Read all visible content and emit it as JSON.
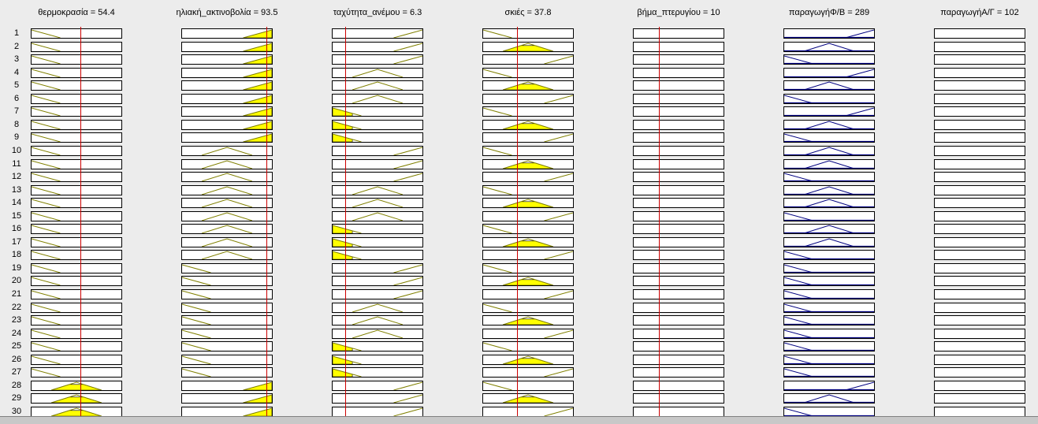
{
  "viewer": {
    "inputs": [
      {
        "label": "θερμοκρασία = 54.4",
        "marker": 0.54
      },
      {
        "label": "ηλιακή_ακτινοβολία = 93.5",
        "marker": 0.935
      },
      {
        "label": "ταχύτητα_ανέμου = 6.3",
        "marker": 0.14
      },
      {
        "label": "σκιές = 37.8",
        "marker": 0.378
      },
      {
        "label": "βήμα_πτερυγίου = 10",
        "marker": 0.28
      }
    ],
    "outputs": [
      {
        "label": "παραγωγήΦ/Β = 289"
      },
      {
        "label": "παραγωγήΑ/Γ = 102"
      }
    ],
    "rows": [
      {
        "n": "1",
        "mf": [
          "low",
          "high",
          "high",
          "low",
          "none",
          "high",
          "none"
        ],
        "act": [
          0,
          1,
          0,
          0,
          0,
          0,
          0
        ]
      },
      {
        "n": "2",
        "mf": [
          "low",
          "high",
          "high",
          "mid",
          "none",
          "mid",
          "none"
        ],
        "act": [
          0,
          1,
          0,
          1,
          0,
          0,
          0
        ]
      },
      {
        "n": "3",
        "mf": [
          "low",
          "high",
          "high",
          "high",
          "none",
          "low",
          "none"
        ],
        "act": [
          0,
          1,
          0,
          0,
          0,
          0,
          0
        ]
      },
      {
        "n": "4",
        "mf": [
          "low",
          "high",
          "mid",
          "low",
          "none",
          "high",
          "none"
        ],
        "act": [
          0,
          1,
          0,
          0,
          0,
          0,
          0
        ]
      },
      {
        "n": "5",
        "mf": [
          "low",
          "high",
          "mid",
          "mid",
          "none",
          "mid",
          "none"
        ],
        "act": [
          0,
          1,
          0,
          1,
          0,
          0,
          0
        ]
      },
      {
        "n": "6",
        "mf": [
          "low",
          "high",
          "mid",
          "high",
          "none",
          "low",
          "none"
        ],
        "act": [
          0,
          1,
          0,
          0,
          0,
          0,
          0
        ]
      },
      {
        "n": "7",
        "mf": [
          "low",
          "high",
          "low",
          "low",
          "none",
          "high",
          "none"
        ],
        "act": [
          0,
          1,
          1,
          0,
          0,
          0,
          0
        ]
      },
      {
        "n": "8",
        "mf": [
          "low",
          "high",
          "low",
          "mid",
          "none",
          "mid",
          "none"
        ],
        "act": [
          0,
          1,
          1,
          1,
          0,
          0,
          0
        ]
      },
      {
        "n": "9",
        "mf": [
          "low",
          "high",
          "low",
          "high",
          "none",
          "low",
          "none"
        ],
        "act": [
          0,
          1,
          1,
          0,
          0,
          0,
          0
        ]
      },
      {
        "n": "10",
        "mf": [
          "low",
          "mid",
          "high",
          "low",
          "none",
          "mid",
          "none"
        ],
        "act": [
          0,
          0,
          0,
          0,
          0,
          0,
          0
        ]
      },
      {
        "n": "11",
        "mf": [
          "low",
          "mid",
          "high",
          "mid",
          "none",
          "mid",
          "none"
        ],
        "act": [
          0,
          0,
          0,
          1,
          0,
          0,
          0
        ]
      },
      {
        "n": "12",
        "mf": [
          "low",
          "mid",
          "high",
          "high",
          "none",
          "low",
          "none"
        ],
        "act": [
          0,
          0,
          0,
          0,
          0,
          0,
          0
        ]
      },
      {
        "n": "13",
        "mf": [
          "low",
          "mid",
          "mid",
          "low",
          "none",
          "mid",
          "none"
        ],
        "act": [
          0,
          0,
          0,
          0,
          0,
          0,
          0
        ]
      },
      {
        "n": "14",
        "mf": [
          "low",
          "mid",
          "mid",
          "mid",
          "none",
          "mid",
          "none"
        ],
        "act": [
          0,
          0,
          0,
          1,
          0,
          0,
          0
        ]
      },
      {
        "n": "15",
        "mf": [
          "low",
          "mid",
          "mid",
          "high",
          "none",
          "low",
          "none"
        ],
        "act": [
          0,
          0,
          0,
          0,
          0,
          0,
          0
        ]
      },
      {
        "n": "16",
        "mf": [
          "low",
          "mid",
          "low",
          "low",
          "none",
          "mid",
          "none"
        ],
        "act": [
          0,
          0,
          1,
          0,
          0,
          0,
          0
        ]
      },
      {
        "n": "17",
        "mf": [
          "low",
          "mid",
          "low",
          "mid",
          "none",
          "mid",
          "none"
        ],
        "act": [
          0,
          0,
          1,
          1,
          0,
          0,
          0
        ]
      },
      {
        "n": "18",
        "mf": [
          "low",
          "mid",
          "low",
          "high",
          "none",
          "low",
          "none"
        ],
        "act": [
          0,
          0,
          1,
          0,
          0,
          0,
          0
        ]
      },
      {
        "n": "19",
        "mf": [
          "low",
          "low",
          "high",
          "low",
          "none",
          "low",
          "none"
        ],
        "act": [
          0,
          0,
          0,
          0,
          0,
          0,
          0
        ]
      },
      {
        "n": "20",
        "mf": [
          "low",
          "low",
          "high",
          "mid",
          "none",
          "low",
          "none"
        ],
        "act": [
          0,
          0,
          0,
          1,
          0,
          0,
          0
        ]
      },
      {
        "n": "21",
        "mf": [
          "low",
          "low",
          "high",
          "high",
          "none",
          "low",
          "none"
        ],
        "act": [
          0,
          0,
          0,
          0,
          0,
          0,
          0
        ]
      },
      {
        "n": "22",
        "mf": [
          "low",
          "low",
          "mid",
          "low",
          "none",
          "low",
          "none"
        ],
        "act": [
          0,
          0,
          0,
          0,
          0,
          0,
          0
        ]
      },
      {
        "n": "23",
        "mf": [
          "low",
          "low",
          "mid",
          "mid",
          "none",
          "low",
          "none"
        ],
        "act": [
          0,
          0,
          0,
          1,
          0,
          0,
          0
        ]
      },
      {
        "n": "24",
        "mf": [
          "low",
          "low",
          "mid",
          "high",
          "none",
          "low",
          "none"
        ],
        "act": [
          0,
          0,
          0,
          0,
          0,
          0,
          0
        ]
      },
      {
        "n": "25",
        "mf": [
          "low",
          "low",
          "low",
          "low",
          "none",
          "low",
          "none"
        ],
        "act": [
          0,
          0,
          1,
          0,
          0,
          0,
          0
        ]
      },
      {
        "n": "26",
        "mf": [
          "low",
          "low",
          "low",
          "mid",
          "none",
          "low",
          "none"
        ],
        "act": [
          0,
          0,
          1,
          1,
          0,
          0,
          0
        ]
      },
      {
        "n": "27",
        "mf": [
          "low",
          "low",
          "low",
          "high",
          "none",
          "low",
          "none"
        ],
        "act": [
          0,
          0,
          1,
          0,
          0,
          0,
          0
        ]
      },
      {
        "n": "28",
        "mf": [
          "mid",
          "high",
          "high",
          "low",
          "none",
          "high",
          "none"
        ],
        "act": [
          1,
          1,
          0,
          0,
          0,
          0,
          0
        ]
      },
      {
        "n": "29",
        "mf": [
          "mid",
          "high",
          "high",
          "mid",
          "none",
          "mid",
          "none"
        ],
        "act": [
          1,
          1,
          0,
          1,
          0,
          0,
          0
        ]
      },
      {
        "n": "30",
        "mf": [
          "mid",
          "high",
          "high",
          "high",
          "none",
          "low",
          "none"
        ],
        "act": [
          1,
          1,
          0,
          0,
          0,
          0,
          0
        ]
      }
    ],
    "colors": {
      "input_line": "#808000",
      "output_line": "#000080",
      "fill": "#ffff00",
      "marker": "#cc0000"
    }
  }
}
